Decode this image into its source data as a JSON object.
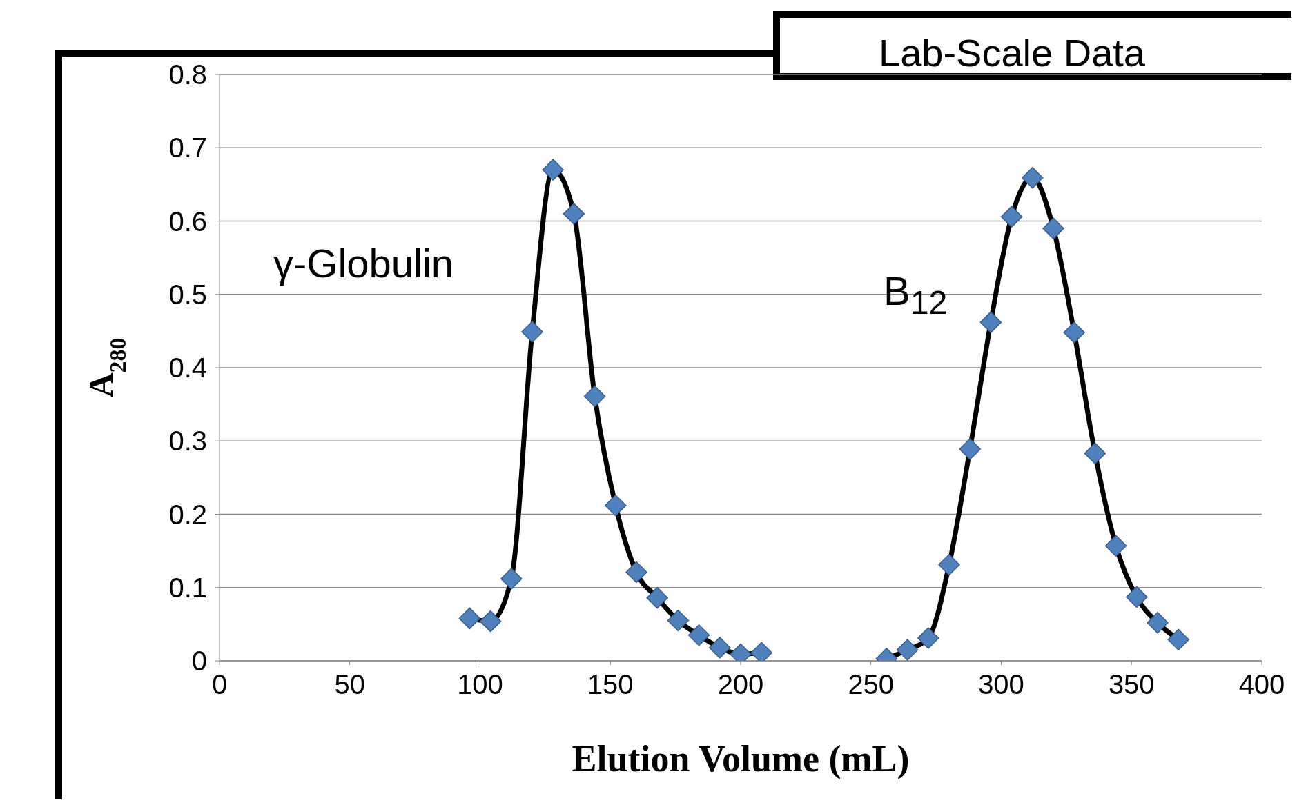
{
  "chart_data": {
    "type": "line",
    "title": "Lab-Scale Data",
    "xlabel": "Elution Volume (mL)",
    "ylabel": "A$_{280}$",
    "series": [
      {
        "color": "#4f81bd",
        "x": [
          96,
          104,
          112,
          120,
          128,
          136,
          144,
          152,
          160,
          168,
          176,
          184,
          192,
          200,
          208
        ],
        "values": [
          0.058,
          0.054,
          0.112,
          0.449,
          0.67,
          0.61,
          0.361,
          0.212,
          0.121,
          0.086,
          0.055,
          0.035,
          0.018,
          0.009,
          0.011
        ]
      },
      {
        "color": "#4f81bd",
        "x": [
          256,
          264,
          272,
          280,
          288,
          296,
          304,
          312,
          320,
          328,
          336,
          344,
          352,
          360,
          368
        ],
        "values": [
          0.003,
          0.015,
          0.031,
          0.131,
          0.289,
          0.462,
          0.606,
          0.659,
          0.59,
          0.448,
          0.283,
          0.157,
          0.087,
          0.052,
          0.029
        ]
      }
    ],
    "annotations": [
      "γ-Globulin",
      "B$_{12}$"
    ],
    "xlim": [
      0,
      400
    ],
    "xticks": [
      0,
      50,
      100,
      150,
      200,
      250,
      300,
      350,
      400
    ],
    "ylim": [
      0,
      0.8
    ],
    "yticks": [
      0,
      0.1,
      0.2,
      0.3,
      0.4,
      0.5,
      0.6,
      0.7,
      0.8
    ],
    "grid": "y",
    "marker": "diamond",
    "line_style": "solid",
    "legend": false
  }
}
